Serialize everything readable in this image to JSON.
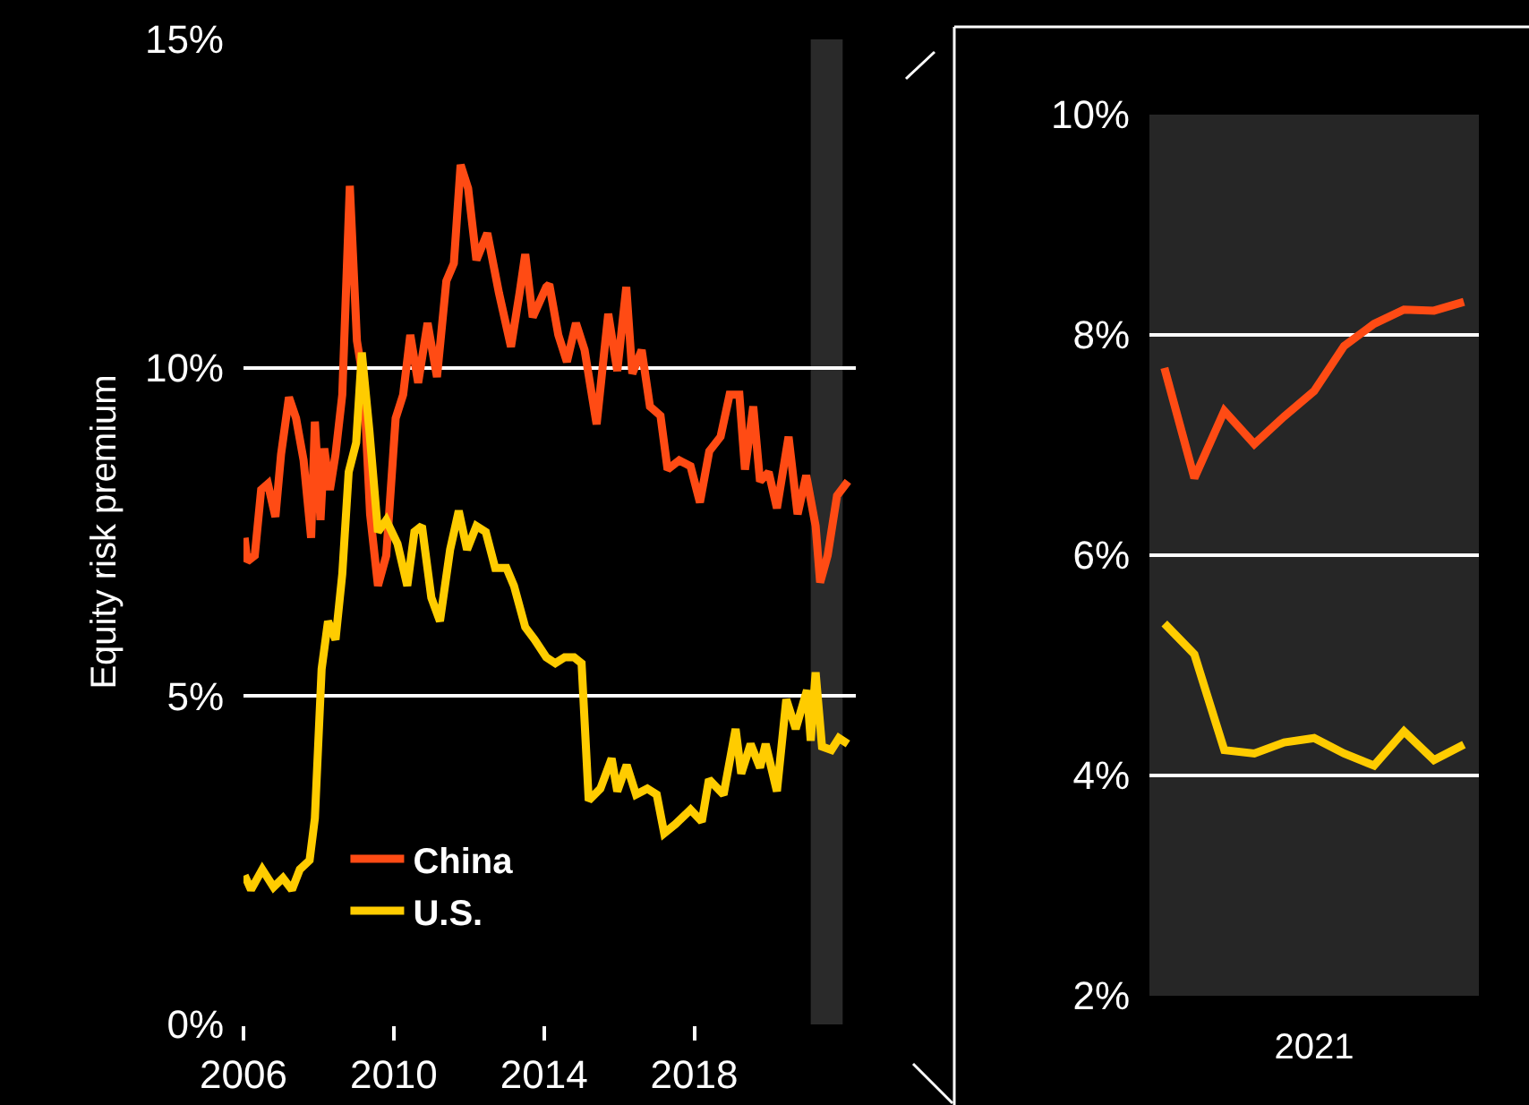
{
  "chart_data": [
    {
      "type": "line",
      "ylabel": "Equity risk premium",
      "xlim": [
        2006,
        2022.3
      ],
      "xticks": [
        2006,
        2010,
        2014,
        2018
      ],
      "ylim": [
        0,
        15
      ],
      "yticks": [
        {
          "value": 0,
          "label": "0%"
        },
        {
          "value": 5,
          "label": "5%"
        },
        {
          "value": 10,
          "label": "10%"
        },
        {
          "value": 15,
          "label": "15%"
        }
      ],
      "grid": "y",
      "legend": "bottom left",
      "bands": [
        {
          "axis": "x",
          "from": 2021.1,
          "to": 2021.95,
          "color": "#2a2a2a"
        }
      ],
      "series": [
        {
          "name": "China",
          "color": "#ff4b14",
          "x": [
            2006.03,
            2006.1,
            2006.3,
            2006.47,
            2006.65,
            2006.85,
            2007.0,
            2007.21,
            2007.4,
            2007.6,
            2007.8,
            2007.9,
            2008.05,
            2008.15,
            2008.3,
            2008.45,
            2008.63,
            2008.83,
            2009.02,
            2009.2,
            2009.37,
            2009.58,
            2009.8,
            2010.05,
            2010.25,
            2010.44,
            2010.65,
            2010.9,
            2011.15,
            2011.4,
            2011.6,
            2011.78,
            2011.98,
            2012.2,
            2012.49,
            2012.8,
            2013.12,
            2013.35,
            2013.5,
            2013.7,
            2014.06,
            2014.14,
            2014.38,
            2014.61,
            2014.85,
            2015.08,
            2015.4,
            2015.71,
            2015.95,
            2016.19,
            2016.35,
            2016.6,
            2016.82,
            2017.1,
            2017.29,
            2017.6,
            2017.9,
            2018.15,
            2018.4,
            2018.7,
            2018.94,
            2019.2,
            2019.35,
            2019.57,
            2019.75,
            2019.98,
            2020.2,
            2020.51,
            2020.75,
            2020.98,
            2021.23,
            2021.35,
            2021.55,
            2021.8,
            2022.09
          ],
          "values": [
            7.41,
            7.05,
            7.14,
            8.14,
            8.23,
            7.73,
            8.68,
            9.55,
            9.23,
            8.59,
            7.41,
            9.18,
            7.68,
            8.77,
            8.14,
            8.68,
            9.59,
            12.77,
            10.41,
            9.77,
            7.77,
            6.68,
            7.14,
            9.23,
            9.59,
            10.5,
            9.77,
            10.68,
            9.86,
            11.32,
            11.59,
            13.09,
            12.73,
            11.64,
            12.05,
            11.14,
            10.32,
            11.14,
            11.73,
            10.77,
            11.23,
            11.27,
            10.5,
            10.09,
            10.68,
            10.27,
            9.14,
            10.82,
            9.95,
            11.23,
            9.91,
            10.27,
            9.41,
            9.27,
            8.45,
            8.59,
            8.5,
            7.95,
            8.73,
            8.95,
            9.59,
            9.59,
            8.45,
            9.41,
            8.27,
            8.41,
            7.86,
            8.95,
            7.77,
            8.36,
            7.59,
            6.73,
            7.14,
            8.05,
            8.27
          ]
        },
        {
          "name": "U.S.",
          "color": "#ffcc00",
          "x": [
            2006.03,
            2006.2,
            2006.5,
            2006.8,
            2007.05,
            2007.29,
            2007.5,
            2007.76,
            2007.9,
            2008.08,
            2008.25,
            2008.45,
            2008.63,
            2008.8,
            2009.0,
            2009.15,
            2009.35,
            2009.58,
            2009.8,
            2010.1,
            2010.36,
            2010.55,
            2010.75,
            2011.0,
            2011.23,
            2011.5,
            2011.73,
            2011.95,
            2012.2,
            2012.45,
            2012.7,
            2013.0,
            2013.2,
            2013.5,
            2013.75,
            2014.06,
            2014.3,
            2014.55,
            2014.8,
            2015.0,
            2015.19,
            2015.5,
            2015.8,
            2015.95,
            2016.2,
            2016.45,
            2016.75,
            2017.0,
            2017.2,
            2017.5,
            2017.9,
            2018.2,
            2018.39,
            2018.78,
            2019.1,
            2019.25,
            2019.5,
            2019.75,
            2019.9,
            2020.2,
            2020.45,
            2020.7,
            2021.0,
            2021.1,
            2021.23,
            2021.4,
            2021.65,
            2021.85,
            2022.09
          ],
          "values": [
            2.27,
            2.05,
            2.36,
            2.09,
            2.23,
            2.05,
            2.36,
            2.5,
            3.14,
            5.41,
            6.14,
            5.86,
            6.86,
            8.41,
            8.86,
            10.23,
            9.05,
            7.5,
            7.68,
            7.32,
            6.68,
            7.5,
            7.59,
            6.5,
            6.14,
            7.23,
            7.82,
            7.23,
            7.59,
            7.5,
            6.95,
            6.95,
            6.68,
            6.05,
            5.86,
            5.59,
            5.5,
            5.59,
            5.59,
            5.5,
            3.41,
            3.59,
            4.05,
            3.55,
            3.95,
            3.5,
            3.59,
            3.5,
            2.91,
            3.05,
            3.27,
            3.09,
            3.73,
            3.5,
            4.5,
            3.82,
            4.27,
            3.91,
            4.27,
            3.55,
            4.95,
            4.5,
            5.09,
            4.32,
            5.36,
            4.23,
            4.18,
            4.36,
            4.27
          ]
        }
      ]
    },
    {
      "type": "line",
      "xlabel": "2021",
      "ylim": [
        2,
        10
      ],
      "yticks": [
        {
          "value": 2,
          "label": "2%"
        },
        {
          "value": 4,
          "label": "4%"
        },
        {
          "value": 6,
          "label": "6%"
        },
        {
          "value": 8,
          "label": "8%"
        },
        {
          "value": 10,
          "label": "10%"
        }
      ],
      "grid": "y",
      "categories": [
        null,
        null,
        null,
        null,
        null,
        null,
        null,
        null,
        null,
        null,
        null
      ],
      "series": [
        {
          "color": "#ff4b14",
          "values": [
            7.7,
            6.7,
            7.31,
            7.01,
            7.26,
            7.49,
            7.9,
            8.1,
            8.23,
            8.22,
            8.3
          ]
        },
        {
          "color": "#ffcc00",
          "values": [
            5.38,
            5.1,
            4.23,
            4.2,
            4.3,
            4.34,
            4.2,
            4.09,
            4.4,
            4.14,
            4.28
          ]
        }
      ]
    }
  ]
}
